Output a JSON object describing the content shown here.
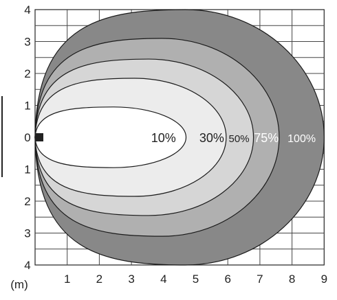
{
  "chart_data": {
    "type": "area",
    "title": "",
    "x_axis": {
      "unit_label": "(m)",
      "ticks": [
        "1",
        "2",
        "3",
        "4",
        "5",
        "6",
        "7",
        "8",
        "9"
      ],
      "range": [
        0,
        9
      ]
    },
    "y_axis": {
      "ticks_upper": [
        "4",
        "3",
        "2",
        "1",
        "0"
      ],
      "ticks_lower": [
        "1",
        "2",
        "3",
        "4"
      ],
      "range": [
        -4,
        4
      ]
    },
    "grid": true,
    "zones": [
      {
        "label": "100%",
        "reach_m": 9.0,
        "half_width_m": 4.0,
        "color": "#888888"
      },
      {
        "label": "75%",
        "reach_m": 7.6,
        "half_width_m": 3.1,
        "color": "#b0b0b0"
      },
      {
        "label": "50%",
        "reach_m": 6.8,
        "half_width_m": 2.45,
        "color": "#d6d6d6"
      },
      {
        "label": "30%",
        "reach_m": 5.95,
        "half_width_m": 1.85,
        "color": "#ececec"
      },
      {
        "label": "10%",
        "reach_m": 4.7,
        "half_width_m": 0.95,
        "color": "#ffffff"
      }
    ]
  }
}
